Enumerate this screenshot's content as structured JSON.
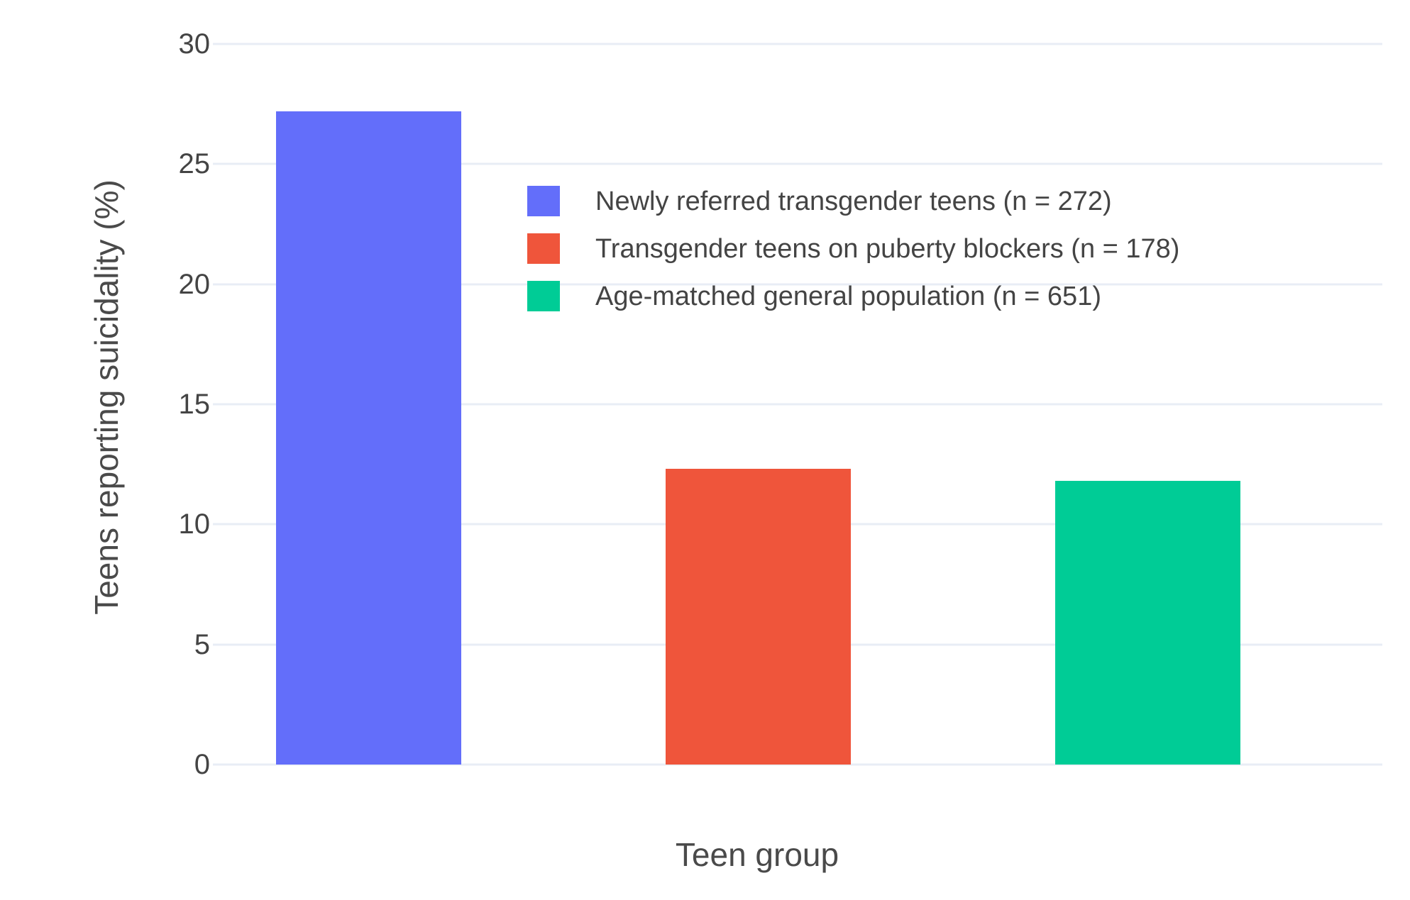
{
  "chart_data": {
    "type": "bar",
    "title": "",
    "xlabel": "Teen group",
    "ylabel": "Teens reporting suicidality (%)",
    "categories": [
      "Newly referred transgender teens (n = 272)",
      "Transgender teens on puberty blockers (n = 178)",
      "Age-matched general population (n = 651)"
    ],
    "values": [
      27.2,
      12.3,
      11.8
    ],
    "colors": [
      "#636efa",
      "#ef553b",
      "#00cc96"
    ],
    "ylim": [
      0,
      30
    ],
    "yticks": [
      0,
      5,
      10,
      15,
      20,
      25,
      30
    ],
    "grid": true,
    "grid_color": "#e8edf5",
    "text_color": "#444444",
    "background_color": "#ffffff",
    "legend_position": "inside upper-middle, left-aligned"
  }
}
